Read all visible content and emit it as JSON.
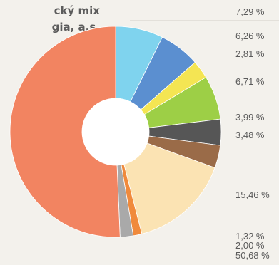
{
  "title_lines": [
    "cký mix",
    "gia, a.s."
  ],
  "chart_data": {
    "type": "pie",
    "variant": "donut",
    "title": "cký mix gia, a.s.",
    "slices": [
      {
        "label": "7,29 %",
        "value": 7.29,
        "color": "#7fd3ee"
      },
      {
        "label": "6,26 %",
        "value": 6.26,
        "color": "#5b8fd0"
      },
      {
        "label": "2,81 %",
        "value": 2.81,
        "color": "#f4e553"
      },
      {
        "label": "6,71 %",
        "value": 6.71,
        "color": "#9dcf46"
      },
      {
        "label": "3,99 %",
        "value": 3.99,
        "color": "#565656"
      },
      {
        "label": "3,48 %",
        "value": 3.48,
        "color": "#9a6b48"
      },
      {
        "label": "15,46 %",
        "value": 15.46,
        "color": "#fbe3b3"
      },
      {
        "label": "1,32 %",
        "value": 1.32,
        "color": "#f08a3c"
      },
      {
        "label": "2,00 %",
        "value": 2.0,
        "color": "#a9a9a9"
      },
      {
        "label": "50,68 %",
        "value": 50.68,
        "color": "#f28461"
      }
    ]
  }
}
